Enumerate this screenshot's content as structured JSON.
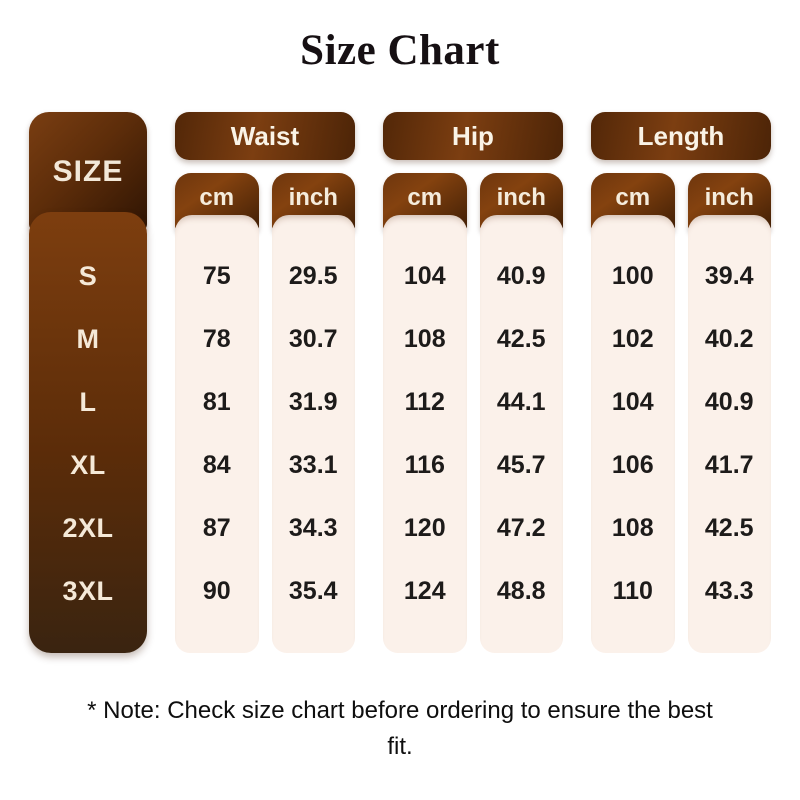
{
  "title": "Size Chart",
  "note": "* Note: Check size chart before ordering to ensure the best fit.",
  "table": {
    "size_header": "SIZE",
    "sizes": [
      "S",
      "M",
      "L",
      "XL",
      "2XL",
      "3XL"
    ],
    "groups": [
      {
        "label": "Waist",
        "columns": [
          {
            "unit": "cm",
            "values": [
              "75",
              "78",
              "81",
              "84",
              "87",
              "90"
            ]
          },
          {
            "unit": "inch",
            "values": [
              "29.5",
              "30.7",
              "31.9",
              "33.1",
              "34.3",
              "35.4"
            ]
          }
        ]
      },
      {
        "label": "Hip",
        "columns": [
          {
            "unit": "cm",
            "values": [
              "104",
              "108",
              "112",
              "116",
              "120",
              "124"
            ]
          },
          {
            "unit": "inch",
            "values": [
              "40.9",
              "42.5",
              "44.1",
              "45.7",
              "47.2",
              "48.8"
            ]
          }
        ]
      },
      {
        "label": "Length",
        "columns": [
          {
            "unit": "cm",
            "values": [
              "100",
              "102",
              "104",
              "106",
              "108",
              "110"
            ]
          },
          {
            "unit": "inch",
            "values": [
              "39.4",
              "40.2",
              "40.9",
              "41.7",
              "42.5",
              "43.3"
            ]
          }
        ]
      }
    ]
  },
  "colors": {
    "background": "#ffffff",
    "title_text": "#161013",
    "brown_light": "#84420f",
    "brown_dark": "#2e1403",
    "size_list_top": "#7d3e0f",
    "size_list_bottom": "#3a2410",
    "column_cream": "#fbf1ea",
    "header_text_cream": "#f5ecdc",
    "value_text": "#1d1b1a"
  },
  "chart_data": {
    "type": "table",
    "title": "Size Chart",
    "columns": [
      "SIZE",
      "Waist cm",
      "Waist inch",
      "Hip cm",
      "Hip inch",
      "Length cm",
      "Length inch"
    ],
    "rows": [
      [
        "S",
        75,
        29.5,
        104,
        40.9,
        100,
        39.4
      ],
      [
        "M",
        78,
        30.7,
        108,
        42.5,
        102,
        40.2
      ],
      [
        "L",
        81,
        31.9,
        112,
        44.1,
        104,
        40.9
      ],
      [
        "XL",
        84,
        33.1,
        116,
        45.7,
        106,
        41.7
      ],
      [
        "2XL",
        87,
        34.3,
        120,
        47.2,
        108,
        42.5
      ],
      [
        "3XL",
        90,
        35.4,
        124,
        48.8,
        110,
        43.3
      ]
    ],
    "note": "* Note: Check size chart before ordering to ensure the best fit."
  }
}
